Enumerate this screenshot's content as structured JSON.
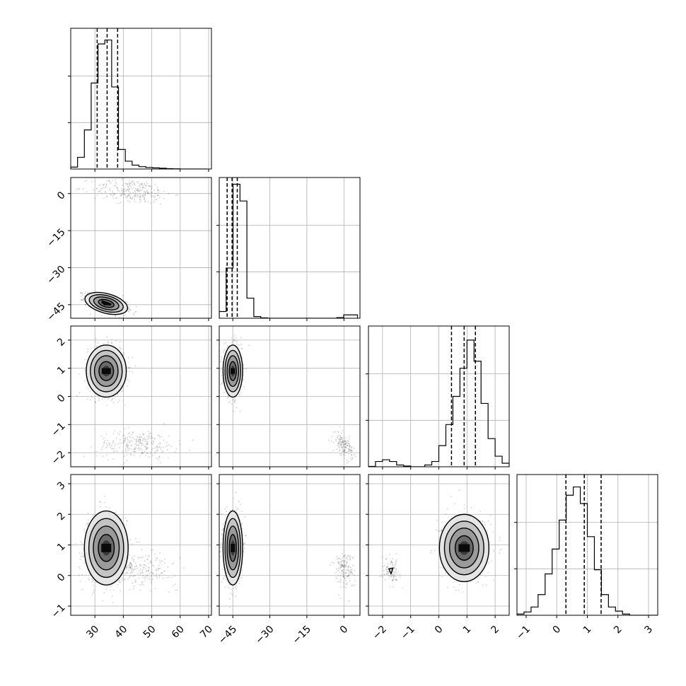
{
  "chart_data": {
    "type": "corner",
    "parameters": [
      {
        "ticks": [
          30,
          40,
          50,
          60,
          70
        ],
        "tick_labels": [
          "30",
          "40",
          "50",
          "60",
          "70"
        ],
        "range": [
          21.5,
          71.0
        ]
      },
      {
        "ticks": [
          -45,
          -30,
          -15,
          0
        ],
        "tick_labels": [
          "−45",
          "−30",
          "−15",
          "0"
        ],
        "range": [
          -50.5,
          6.5
        ]
      },
      {
        "ticks": [
          -2,
          -1,
          0,
          1,
          2
        ],
        "tick_labels": [
          "−2",
          "−1",
          "0",
          "1",
          "2"
        ],
        "range": [
          -2.5,
          2.5
        ]
      },
      {
        "ticks": [
          -1,
          0,
          1,
          2,
          3
        ],
        "tick_labels": [
          "−1",
          "0",
          "1",
          "2",
          "3"
        ],
        "range": [
          -1.3,
          3.3
        ]
      }
    ],
    "quantiles": [
      [
        30.8,
        34.3,
        38.0
      ],
      [
        -47.3,
        -45.3,
        -43.2
      ],
      [
        0.45,
        0.9,
        1.3
      ],
      [
        0.3,
        0.9,
        1.45
      ]
    ],
    "marginals": [
      {
        "edges_start": 21.5,
        "bin_width": 2.4,
        "counts": [
          0.5,
          3,
          10,
          22,
          32,
          33,
          21,
          5,
          2,
          1,
          0.6,
          0.4,
          0.3,
          0.2,
          0.1,
          0.05,
          0,
          0,
          0,
          0
        ],
        "ymax": 36
      },
      {
        "edges_start": -50.5,
        "bin_width": 2.8,
        "counts": [
          2,
          15,
          40,
          35,
          6,
          0.5,
          0.1,
          0,
          0,
          0,
          0,
          0,
          0,
          0,
          0,
          0,
          0,
          0.2,
          1,
          1
        ],
        "ymax": 42
      },
      {
        "edges_start": -2.5,
        "bin_width": 0.25,
        "counts": [
          0.1,
          1.5,
          2,
          1.5,
          0.5,
          0.2,
          0,
          0,
          0.5,
          1.5,
          6,
          12,
          20,
          28,
          36,
          30,
          18,
          8,
          3,
          1
        ],
        "ymax": 40
      },
      {
        "edges_start": -1.3,
        "bin_width": 0.23,
        "counts": [
          0.3,
          0.8,
          2,
          5,
          10,
          16,
          23,
          29,
          31,
          27,
          19,
          11,
          5,
          2,
          1,
          0.3,
          0,
          0,
          0,
          0
        ],
        "ymax": 34
      }
    ],
    "joint_clusters": {
      "1_0": [
        {
          "cx": 34,
          "cy": -44.5,
          "sx": 3.5,
          "sy": 1.8,
          "rho": -0.6,
          "n": 900
        },
        {
          "cx": 43,
          "cy": 1,
          "sx": 7,
          "sy": 2.5,
          "rho": -0.2,
          "n": 250
        }
      ],
      "2_0": [
        {
          "cx": 34,
          "cy": 0.9,
          "sx": 3.2,
          "sy": 0.42,
          "rho": 0,
          "n": 900
        },
        {
          "cx": 45,
          "cy": -1.7,
          "sx": 7,
          "sy": 0.25,
          "rho": 0,
          "n": 250
        }
      ],
      "2_1": [
        {
          "cx": -45,
          "cy": 0.9,
          "sx": 1.8,
          "sy": 0.42,
          "rho": 0,
          "n": 900
        },
        {
          "cx": 0,
          "cy": -1.75,
          "sx": 1.8,
          "sy": 0.22,
          "rho": -0.5,
          "n": 150
        }
      ],
      "3_0": [
        {
          "cx": 34,
          "cy": 0.9,
          "sx": 3.5,
          "sy": 0.55,
          "rho": 0,
          "n": 900
        },
        {
          "cx": 45,
          "cy": 0.2,
          "sx": 7,
          "sy": 0.25,
          "rho": 0,
          "n": 250
        }
      ],
      "3_1": [
        {
          "cx": -45,
          "cy": 0.9,
          "sx": 1.8,
          "sy": 0.55,
          "rho": 0,
          "n": 900
        },
        {
          "cx": 0,
          "cy": 0.2,
          "sx": 2,
          "sy": 0.3,
          "rho": 0,
          "n": 150
        }
      ],
      "3_2": [
        {
          "cx": 0.9,
          "cy": 0.9,
          "sx": 0.4,
          "sy": 0.5,
          "rho": 0,
          "n": 900
        },
        {
          "cx": -1.7,
          "cy": 0.15,
          "sx": 0.15,
          "sy": 0.2,
          "rho": 0,
          "n": 100
        }
      ]
    }
  }
}
